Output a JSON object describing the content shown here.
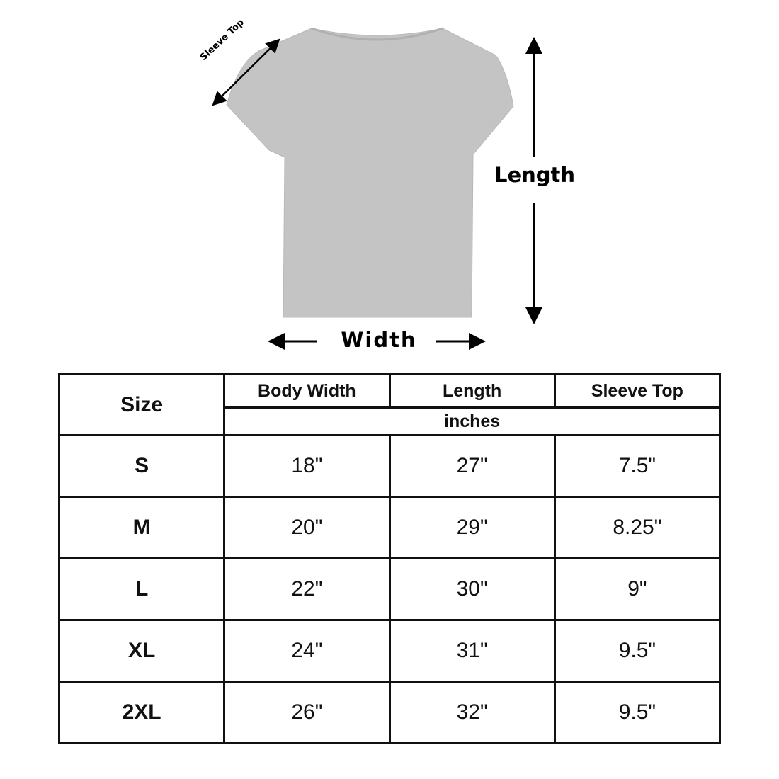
{
  "diagram": {
    "shirt_color": "#c4c4c4",
    "labels": {
      "sleeve_top": "Sleeve Top",
      "length": "Length",
      "width": "Width"
    }
  },
  "table": {
    "headers": {
      "size": "Size",
      "body_width": "Body Width",
      "length": "Length",
      "sleeve_top": "Sleeve Top"
    },
    "unit": "inches",
    "rows": [
      {
        "size": "S",
        "body_width": "18\"",
        "length": "27\"",
        "sleeve_top": "7.5\""
      },
      {
        "size": "M",
        "body_width": "20\"",
        "length": "29\"",
        "sleeve_top": "8.25\""
      },
      {
        "size": "L",
        "body_width": "22\"",
        "length": "30\"",
        "sleeve_top": "9\""
      },
      {
        "size": "XL",
        "body_width": "24\"",
        "length": "31\"",
        "sleeve_top": "9.5\""
      },
      {
        "size": "2XL",
        "body_width": "26\"",
        "length": "32\"",
        "sleeve_top": "9.5\""
      }
    ]
  }
}
